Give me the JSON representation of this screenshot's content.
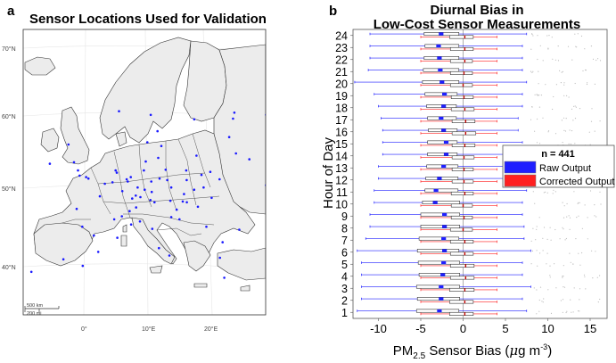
{
  "panels": {
    "a": {
      "letter": "a",
      "title": "Sensor Locations Used for Validation"
    },
    "b": {
      "letter": "b",
      "title_line1": "Diurnal Bias in",
      "title_line2": "Low-Cost Sensor Measurements"
    }
  },
  "colors": {
    "raw": "#1f1fff",
    "corrected": "#ff2020",
    "land": "#ececec",
    "sensor_dot": "#1a1aff",
    "median_line": "#c40000"
  },
  "chart_data": [
    {
      "type": "map",
      "title": "Sensor Locations Used for Validation",
      "lat_labels": [
        "70°N",
        "60°N",
        "50°N",
        "40°N"
      ],
      "lon_labels": [
        "0°",
        "10°E",
        "20°E"
      ],
      "scale_bar": {
        "km": "500 km",
        "mi": "200 mi"
      },
      "sensors": [
        {
          "lon": -6.3,
          "lat": 53.3
        },
        {
          "lon": -3.2,
          "lat": 55.9
        },
        {
          "lon": -2.2,
          "lat": 53.5
        },
        {
          "lon": -1.5,
          "lat": 52.4
        },
        {
          "lon": -0.1,
          "lat": 51.5
        },
        {
          "lon": 0.3,
          "lat": 51.3
        },
        {
          "lon": -1.2,
          "lat": 51.7
        },
        {
          "lon": 2.3,
          "lat": 48.9
        },
        {
          "lon": 4.4,
          "lat": 50.8
        },
        {
          "lon": 4.9,
          "lat": 52.4
        },
        {
          "lon": 5.1,
          "lat": 52.1
        },
        {
          "lon": 6.1,
          "lat": 49.6
        },
        {
          "lon": 6.8,
          "lat": 51.2
        },
        {
          "lon": 7.0,
          "lat": 50.9
        },
        {
          "lon": 7.5,
          "lat": 51.5
        },
        {
          "lon": 8.7,
          "lat": 50.1
        },
        {
          "lon": 8.4,
          "lat": 49.0
        },
        {
          "lon": 9.2,
          "lat": 48.8
        },
        {
          "lon": 10.0,
          "lat": 53.6
        },
        {
          "lon": 9.7,
          "lat": 52.4
        },
        {
          "lon": 11.6,
          "lat": 48.1
        },
        {
          "lon": 11.1,
          "lat": 49.5
        },
        {
          "lon": 12.4,
          "lat": 51.3
        },
        {
          "lon": 13.4,
          "lat": 52.5
        },
        {
          "lon": 13.7,
          "lat": 51.1
        },
        {
          "lon": 14.4,
          "lat": 50.1
        },
        {
          "lon": 16.4,
          "lat": 48.2
        },
        {
          "lon": 16.6,
          "lat": 49.2
        },
        {
          "lon": 17.0,
          "lat": 51.1
        },
        {
          "lon": 19.9,
          "lat": 50.1
        },
        {
          "lon": 21.0,
          "lat": 52.2
        },
        {
          "lon": 19.5,
          "lat": 51.8
        },
        {
          "lon": 18.6,
          "lat": 54.4
        },
        {
          "lon": 16.9,
          "lat": 52.4
        },
        {
          "lon": 19.0,
          "lat": 47.5
        },
        {
          "lon": 17.1,
          "lat": 48.1
        },
        {
          "lon": 14.5,
          "lat": 46.1
        },
        {
          "lon": 15.9,
          "lat": 45.8
        },
        {
          "lon": 12.5,
          "lat": 41.9
        },
        {
          "lon": 9.2,
          "lat": 45.5
        },
        {
          "lon": 7.7,
          "lat": 45.1
        },
        {
          "lon": 11.3,
          "lat": 44.5
        },
        {
          "lon": 14.3,
          "lat": 40.9
        },
        {
          "lon": 2.2,
          "lat": 41.4
        },
        {
          "lon": -3.7,
          "lat": 40.4
        },
        {
          "lon": -9.1,
          "lat": 38.7
        },
        {
          "lon": -0.4,
          "lat": 39.5
        },
        {
          "lon": 23.7,
          "lat": 37.9
        },
        {
          "lon": 22.9,
          "lat": 40.6
        },
        {
          "lon": 26.1,
          "lat": 44.4
        },
        {
          "lon": 23.3,
          "lat": 42.7
        },
        {
          "lon": 20.5,
          "lat": 44.8
        },
        {
          "lon": 24.1,
          "lat": 56.9
        },
        {
          "lon": 25.3,
          "lat": 54.7
        },
        {
          "lon": 24.7,
          "lat": 59.4
        },
        {
          "lon": 24.9,
          "lat": 60.2
        },
        {
          "lon": 18.1,
          "lat": 59.3
        },
        {
          "lon": 11.9,
          "lat": 57.7
        },
        {
          "lon": 10.7,
          "lat": 59.9
        },
        {
          "lon": 12.6,
          "lat": 55.7
        },
        {
          "lon": 10.2,
          "lat": 56.2
        },
        {
          "lon": 5.3,
          "lat": 60.4
        },
        {
          "lon": 30.3,
          "lat": 59.9
        },
        {
          "lon": 30.5,
          "lat": 50.4
        },
        {
          "lon": 27.6,
          "lat": 53.9
        },
        {
          "lon": 7.4,
          "lat": 46.9
        },
        {
          "lon": 8.5,
          "lat": 47.4
        },
        {
          "lon": 6.1,
          "lat": 46.2
        },
        {
          "lon": 4.8,
          "lat": 45.8
        },
        {
          "lon": 5.4,
          "lat": 43.3
        },
        {
          "lon": 1.4,
          "lat": 43.6
        },
        {
          "lon": -0.6,
          "lat": 44.8
        },
        {
          "lon": -1.6,
          "lat": 47.2
        },
        {
          "lon": 3.1,
          "lat": 50.6
        },
        {
          "lon": 7.8,
          "lat": 48.6
        },
        {
          "lon": 11.0,
          "lat": 50.9
        },
        {
          "lon": 12.1,
          "lat": 54.1
        },
        {
          "lon": 9.9,
          "lat": 49.8
        },
        {
          "lon": 10.9,
          "lat": 48.4
        },
        {
          "lon": 15.4,
          "lat": 47.1
        },
        {
          "lon": 14.3,
          "lat": 48.3
        },
        {
          "lon": 18.3,
          "lat": 49.8
        },
        {
          "lon": 21.3,
          "lat": 48.7
        },
        {
          "lon": 22.6,
          "lat": 51.2
        }
      ]
    },
    {
      "type": "boxplot",
      "title": "Diurnal Bias in Low-Cost Sensor Measurements",
      "xlabel_main": "PM",
      "xlabel_sub": "2.5",
      "xlabel_rest": " Sensor Bias (",
      "xlabel_mu": "μ",
      "xlabel_unit": "g m",
      "xlabel_exp": "-3",
      "xlabel_close": ")",
      "ylabel": "Hour of Day",
      "xlim": [
        -13,
        17
      ],
      "xticks": [
        -10,
        -5,
        0,
        5,
        10,
        15
      ],
      "xtick_labels": [
        "-10",
        "-5",
        "0",
        "5",
        "10",
        "15"
      ],
      "hours": [
        "1",
        "2",
        "3",
        "4",
        "5",
        "6",
        "7",
        "8",
        "9",
        "10",
        "11",
        "12",
        "13",
        "14",
        "15",
        "16",
        "17",
        "18",
        "19",
        "20",
        "21",
        "22",
        "23",
        "24"
      ],
      "legend": {
        "title": "n = 441",
        "raw": "Raw Output",
        "corrected": "Corrected Output",
        "placement": "right"
      },
      "series": [
        {
          "name": "Raw Output",
          "q1": [
            -5.5,
            -5.4,
            -5.5,
            -5.2,
            -5.3,
            -5.4,
            -5.2,
            -5.0,
            -5.0,
            -4.8,
            -4.5,
            -4.4,
            -4.3,
            -4.2,
            -4.2,
            -4.1,
            -4.2,
            -4.3,
            -4.5,
            -4.8,
            -4.7,
            -4.6,
            -4.5,
            -4.6
          ],
          "median": [
            -2.8,
            -2.6,
            -2.6,
            -2.4,
            -2.3,
            -2.2,
            -2.3,
            -2.2,
            -2.2,
            -3.3,
            -3.2,
            -2.8,
            -2.3,
            -2.0,
            -2.0,
            -2.3,
            -2.6,
            -2.3,
            -2.2,
            -2.5,
            -2.7,
            -2.8,
            -2.9,
            -2.6
          ],
          "q3": [
            -0.5,
            -0.4,
            -0.4,
            -0.4,
            -0.4,
            -0.5,
            -0.5,
            -0.4,
            -0.4,
            -0.4,
            -0.6,
            -0.6,
            -0.6,
            -0.7,
            -0.7,
            -0.7,
            -0.8,
            -0.8,
            -0.7,
            -0.5,
            -0.5,
            -0.5,
            -0.5,
            -0.5
          ],
          "wlo": [
            -12.5,
            -12.0,
            -12.0,
            -12.0,
            -12.0,
            -12.5,
            -11.5,
            -11.0,
            -11.0,
            -10.5,
            -10.5,
            -10.0,
            -10.0,
            -9.5,
            -9.5,
            -9.5,
            -9.7,
            -10.0,
            -10.5,
            -12.8,
            -11.2,
            -11.0,
            -11.0,
            -11.0
          ],
          "whi": [
            7.5,
            7.0,
            8.0,
            7.0,
            7.0,
            8.0,
            7.2,
            7.2,
            7.0,
            7.0,
            7.5,
            7.0,
            7.5,
            7.0,
            7.0,
            6.5,
            6.5,
            7.0,
            7.0,
            7.5,
            7.0,
            7.0,
            7.0,
            7.5
          ]
        },
        {
          "name": "Corrected Output",
          "q1": [
            -1.6,
            -1.6,
            -1.6,
            -1.5,
            -1.5,
            -1.5,
            -1.5,
            -1.5,
            -1.4,
            -1.4,
            -1.4,
            -1.3,
            -1.3,
            -1.3,
            -1.3,
            -1.3,
            -1.3,
            -1.4,
            -1.4,
            -1.5,
            -1.5,
            -1.5,
            -1.5,
            -1.6
          ],
          "median": [
            0.2,
            0.2,
            0.2,
            0.3,
            0.3,
            0.2,
            0.2,
            0.0,
            0.1,
            0.0,
            0.2,
            0.1,
            0.1,
            0.1,
            0.2,
            0.3,
            0.3,
            0.2,
            0.1,
            0.0,
            0.1,
            0.2,
            0.2,
            0.2
          ],
          "q3": [
            1.2,
            1.2,
            1.3,
            1.3,
            1.3,
            1.2,
            1.2,
            1.1,
            1.1,
            1.1,
            1.2,
            1.2,
            1.2,
            1.3,
            1.4,
            1.5,
            1.4,
            1.3,
            1.2,
            1.1,
            1.1,
            1.1,
            1.2,
            1.2
          ],
          "wlo": [
            -5.0,
            -5.0,
            -5.0,
            -5.0,
            -5.0,
            -5.0,
            -5.0,
            -5.0,
            -5.0,
            -5.0,
            -5.0,
            -5.0,
            -5.0,
            -5.0,
            -5.0,
            -5.0,
            -5.0,
            -5.0,
            -5.0,
            -5.0,
            -5.0,
            -5.0,
            -5.0,
            -5.0
          ],
          "whi": [
            4.0,
            4.0,
            4.0,
            4.0,
            4.0,
            4.0,
            4.0,
            4.0,
            4.0,
            4.0,
            4.0,
            4.0,
            4.0,
            4.0,
            4.0,
            4.0,
            4.0,
            4.0,
            4.0,
            4.0,
            4.0,
            4.0,
            4.0,
            4.0
          ]
        }
      ]
    }
  ]
}
